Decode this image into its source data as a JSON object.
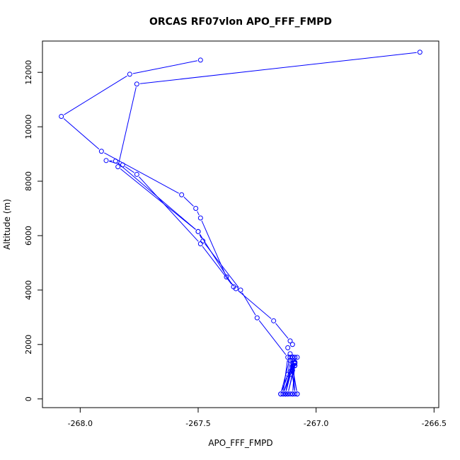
{
  "chart_data": {
    "type": "line",
    "title": "ORCAS RF07vlon APO_FFF_FMPD",
    "xlabel": "APO_FFF_FMPD",
    "ylabel": "Altitude (m)",
    "xlim": [
      -268.16,
      -266.48
    ],
    "ylim": [
      -320,
      13150
    ],
    "x_ticks": [
      -268.0,
      -267.5,
      -267.0,
      -266.5
    ],
    "x_tick_labels": [
      "-268.0",
      "-267.5",
      "-267.0",
      "-266.5"
    ],
    "y_ticks": [
      0,
      2000,
      4000,
      6000,
      8000,
      10000,
      12000
    ],
    "y_tick_labels": [
      "0",
      "2000",
      "4000",
      "6000",
      "8000",
      "10000",
      "12000"
    ],
    "grid": false,
    "line_color": "#0000ff",
    "marker": "open-circle",
    "series": [
      {
        "x": [
          -267.49,
          -267.79,
          -268.08,
          -267.91,
          -267.57,
          -267.51,
          -267.49,
          -267.38,
          -267.34,
          -267.18,
          -267.11,
          -267.1,
          -267.12,
          -267.11,
          -267.1,
          -267.09,
          -267.08,
          -267.09,
          -267.1,
          -267.11,
          -267.09,
          -267.1,
          -267.09,
          -267.1,
          -267.12,
          -267.13,
          -267.11,
          -267.08,
          -267.1,
          -267.09,
          -267.14,
          -267.13,
          -267.1,
          -267.11,
          -267.12,
          -267.15,
          -267.09,
          -267.13,
          -267.11,
          -267.1,
          -267.09,
          -267.11,
          -267.15,
          -267.1,
          -267.08,
          -267.11,
          -267.09,
          -267.12,
          -267.09,
          -267.14,
          -267.12,
          -267.25,
          -267.32,
          -267.48,
          -267.5,
          -267.85,
          -267.89,
          -267.82,
          -267.76,
          -267.49,
          -267.35,
          -267.5,
          -267.84,
          -267.76,
          -266.56
        ],
        "y": [
          12450,
          11930,
          10380,
          9100,
          7500,
          7000,
          6650,
          4480,
          4050,
          2870,
          2130,
          2000,
          1880,
          1660,
          1540,
          1320,
          1530,
          1220,
          1050,
          900,
          1300,
          1530,
          1350,
          180,
          180,
          180,
          180,
          180,
          1200,
          1530,
          180,
          180,
          1530,
          1400,
          900,
          180,
          1530,
          180,
          1000,
          1530,
          180,
          1530,
          180,
          180,
          180,
          1530,
          1230,
          180,
          1330,
          180,
          1530,
          2980,
          4000,
          5800,
          6150,
          8740,
          8760,
          8600,
          8250,
          5700,
          4120,
          6150,
          8530,
          11570,
          12740
        ]
      }
    ]
  }
}
